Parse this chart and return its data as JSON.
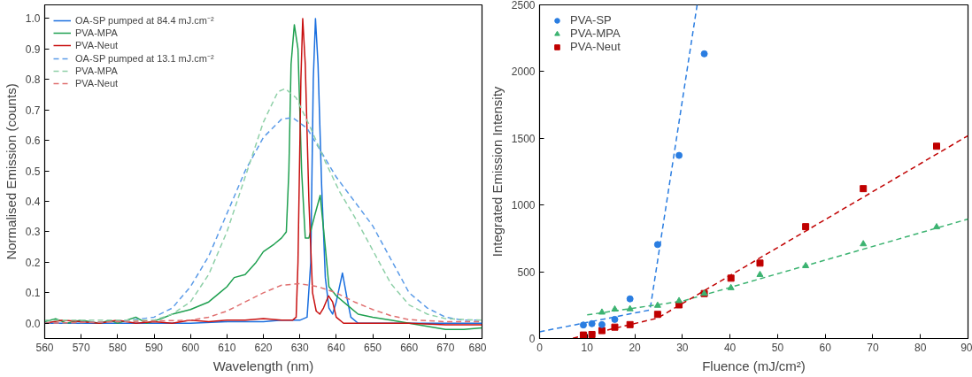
{
  "chart_data": [
    {
      "type": "line",
      "xlabel": "Wavelength (nm)",
      "ylabel": "Normalised Emission (counts)",
      "xlim": [
        560,
        680
      ],
      "ylim": [
        -0.05,
        1.045
      ],
      "xticks": [
        560,
        570,
        580,
        590,
        600,
        610,
        620,
        630,
        640,
        650,
        660,
        670,
        680
      ],
      "yticks": [
        {
          "value": 0,
          "label": "0.0"
        },
        0.1,
        0.2,
        0.3,
        0.4,
        0.5,
        0.6,
        0.7,
        0.8,
        0.9,
        {
          "value": 1,
          "label": "1.0"
        }
      ],
      "grid": false,
      "legend": "top left",
      "marker": "none",
      "series": [
        {
          "name": "OA-SP pumped at 84.4 mJ.cm⁻²",
          "color": "#1a6fdf",
          "line_style": "solid",
          "x": [
            560,
            570,
            580,
            590,
            600,
            610,
            620,
            625,
            630,
            632,
            633,
            633.7,
            634.3,
            635,
            636,
            637,
            638,
            639,
            640,
            641.7,
            643,
            644,
            646,
            650,
            660,
            670,
            680
          ],
          "values": [
            0.0,
            0.0,
            0.0,
            0.0,
            0.0,
            0.005,
            0.005,
            0.01,
            0.01,
            0.02,
            0.2,
            0.8,
            1.0,
            0.85,
            0.45,
            0.15,
            0.05,
            0.03,
            0.07,
            0.165,
            0.08,
            0.02,
            0.0,
            0.0,
            0.0,
            0.0,
            0.0
          ]
        },
        {
          "name": "PVA-MPA",
          "color": "#1fa050",
          "line_style": "solid",
          "x": [
            560,
            563,
            566,
            570,
            575,
            578,
            580,
            585,
            588,
            592,
            595,
            600,
            605,
            608,
            610,
            612,
            615,
            618,
            620,
            623,
            625,
            626.3,
            627,
            627.6,
            628.5,
            629.5,
            630.5,
            631.5,
            632.5,
            634,
            635.6,
            637,
            638,
            640,
            643,
            646,
            650,
            655,
            660,
            665,
            670,
            675,
            680
          ],
          "values": [
            0.005,
            0.015,
            0.0,
            0.01,
            0.0,
            0.01,
            0.0,
            0.02,
            0.0,
            0.015,
            0.03,
            0.045,
            0.07,
            0.1,
            0.12,
            0.15,
            0.16,
            0.2,
            0.235,
            0.26,
            0.28,
            0.3,
            0.5,
            0.85,
            0.98,
            0.9,
            0.5,
            0.28,
            0.28,
            0.35,
            0.42,
            0.25,
            0.12,
            0.09,
            0.06,
            0.03,
            0.02,
            0.01,
            0.0,
            -0.01,
            -0.02,
            -0.02,
            -0.015
          ]
        },
        {
          "name": "PVA-Neut",
          "color": "#c81010",
          "line_style": "solid",
          "x": [
            560,
            565,
            570,
            575,
            580,
            585,
            590,
            595,
            600,
            605,
            610,
            615,
            620,
            625,
            628,
            629,
            629.5,
            630.3,
            630.8,
            631.5,
            632.5,
            633.5,
            634.5,
            635.5,
            636.5,
            637.9,
            639,
            640,
            642,
            650,
            660,
            670,
            680
          ],
          "values": [
            0.0,
            0.01,
            0.005,
            0.0,
            0.01,
            0.0,
            0.005,
            0.0,
            0.01,
            0.005,
            0.01,
            0.01,
            0.015,
            0.01,
            0.01,
            0.02,
            0.2,
            0.8,
            1.0,
            0.85,
            0.4,
            0.1,
            0.04,
            0.03,
            0.05,
            0.09,
            0.07,
            0.02,
            0.0,
            0.0,
            0.0,
            -0.005,
            -0.005
          ]
        },
        {
          "name": "OA-SP pumped at 13.1 mJ.cm⁻²",
          "color": "#5b9be8",
          "line_style": "dashed",
          "x": [
            560,
            580,
            590,
            595,
            600,
            605,
            610,
            615,
            620,
            625,
            628,
            632,
            636,
            640,
            645,
            650,
            655,
            660,
            665,
            670,
            675,
            680
          ],
          "values": [
            0.0,
            0.005,
            0.02,
            0.05,
            0.12,
            0.22,
            0.36,
            0.5,
            0.61,
            0.67,
            0.675,
            0.64,
            0.56,
            0.48,
            0.4,
            0.32,
            0.21,
            0.1,
            0.05,
            0.02,
            0.01,
            0.01
          ]
        },
        {
          "name": "PVA-MPA",
          "color": "#8fd0a8",
          "line_style": "dashed",
          "x": [
            560,
            590,
            595,
            600,
            605,
            610,
            615,
            620,
            624,
            626,
            629,
            633,
            637,
            641,
            645,
            650,
            655,
            660,
            665,
            670,
            680
          ],
          "values": [
            0.01,
            0.01,
            0.03,
            0.07,
            0.16,
            0.3,
            0.48,
            0.66,
            0.76,
            0.77,
            0.74,
            0.64,
            0.53,
            0.43,
            0.35,
            0.24,
            0.13,
            0.06,
            0.03,
            0.015,
            0.01
          ]
        },
        {
          "name": "PVA-Neut",
          "color": "#e07070",
          "line_style": "dashed",
          "x": [
            560,
            600,
            605,
            610,
            615,
            620,
            625,
            630,
            635,
            640,
            645,
            650,
            655,
            660,
            670,
            680
          ],
          "values": [
            0.0,
            0.01,
            0.02,
            0.04,
            0.07,
            0.1,
            0.125,
            0.13,
            0.12,
            0.1,
            0.07,
            0.045,
            0.025,
            0.012,
            0.005,
            0.005
          ]
        }
      ]
    },
    {
      "type": "scatter",
      "xlabel": "Fluence (mJ/cm²)",
      "ylabel": "Integrated Emission Intensity",
      "xlim": [
        0,
        90
      ],
      "ylim": [
        0,
        2500
      ],
      "xticks": [
        0,
        10,
        20,
        30,
        40,
        50,
        60,
        70,
        80,
        90
      ],
      "yticks": [
        0,
        500,
        1000,
        1500,
        2000,
        2500
      ],
      "grid": false,
      "legend": "top left",
      "series": [
        {
          "name": "PVA-SP",
          "color": "#2a7de1",
          "marker": "circle",
          "x": [
            9.2,
            11.0,
            13.1,
            15.8,
            19.0,
            24.8,
            29.3,
            34.6
          ],
          "values": [
            101,
            111,
            104,
            143,
            297,
            704,
            1372,
            2133
          ]
        },
        {
          "name": "PVA-MPA",
          "color": "#3cb371",
          "marker": "triangle",
          "x": [
            13.1,
            15.8,
            19.0,
            24.8,
            29.3,
            34.6,
            40.2,
            46.3,
            55.9,
            68.0,
            83.4
          ],
          "values": [
            196,
            219,
            221,
            247,
            282,
            337,
            379,
            478,
            544,
            708,
            835
          ]
        },
        {
          "name": "PVA-Neut",
          "color": "#c00000",
          "marker": "square",
          "x": [
            9.2,
            11.0,
            13.1,
            15.8,
            19.0,
            24.8,
            29.3,
            34.6,
            40.2,
            46.3,
            55.9,
            68.0,
            83.4
          ],
          "values": [
            26,
            30,
            59,
            85,
            104,
            181,
            252,
            337,
            452,
            565,
            838,
            1123,
            1441
          ]
        },
        {
          "type": "line",
          "color": "#2a7de1",
          "line_style": "dashed",
          "x": [
            0,
            23.2,
            33.1
          ],
          "values": [
            50,
            214,
            2500
          ]
        },
        {
          "type": "line",
          "color": "#3cb371",
          "line_style": "dashed",
          "x": [
            10,
            30,
            90
          ],
          "values": [
            177,
            280,
            895
          ]
        },
        {
          "type": "line",
          "color": "#c00000",
          "line_style": "dashed",
          "x": [
            7,
            24.8,
            90
          ],
          "values": [
            2,
            153,
            1520
          ]
        }
      ]
    }
  ]
}
